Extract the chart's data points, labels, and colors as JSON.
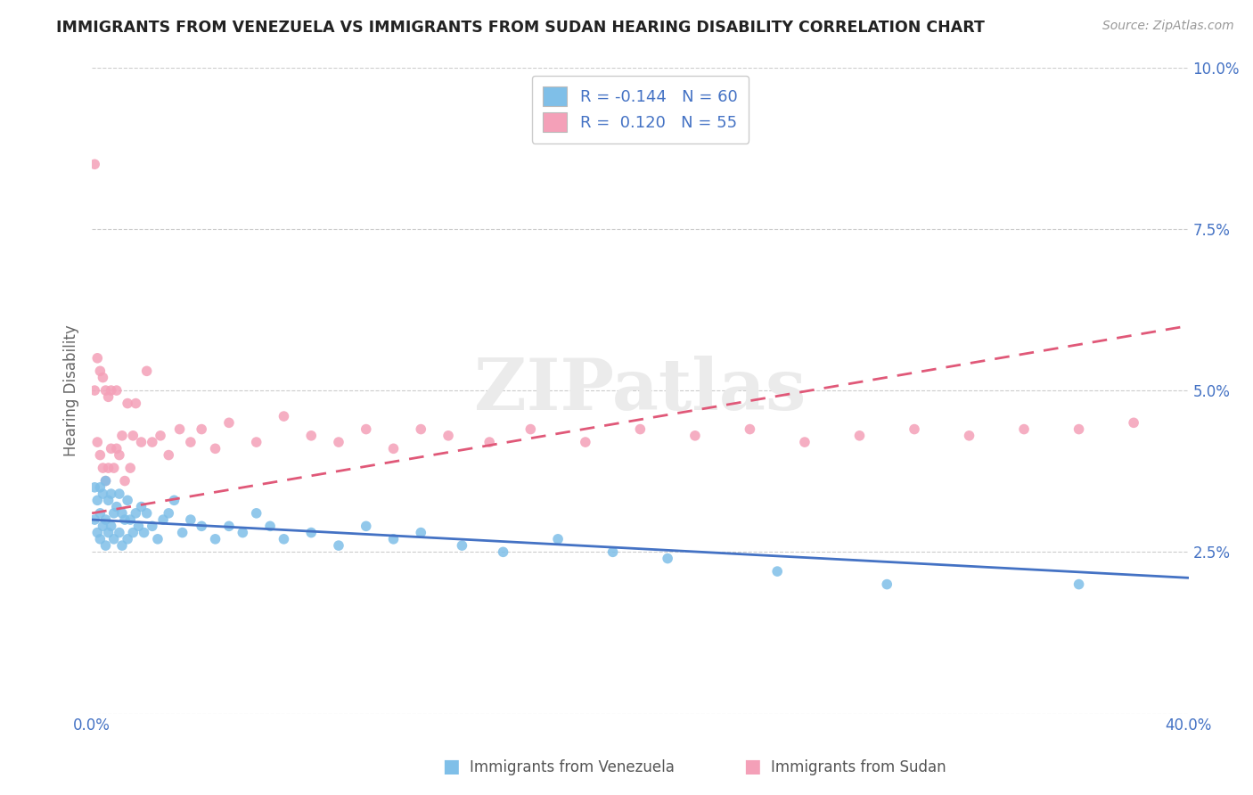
{
  "title": "IMMIGRANTS FROM VENEZUELA VS IMMIGRANTS FROM SUDAN HEARING DISABILITY CORRELATION CHART",
  "source": "Source: ZipAtlas.com",
  "xlabel": "",
  "ylabel": "Hearing Disability",
  "xlim": [
    0.0,
    0.4
  ],
  "ylim": [
    0.0,
    0.1
  ],
  "xticks": [
    0.0,
    0.1,
    0.2,
    0.3,
    0.4
  ],
  "xticklabels": [
    "0.0%",
    "",
    "",
    "",
    "40.0%"
  ],
  "yticks": [
    0.0,
    0.025,
    0.05,
    0.075,
    0.1
  ],
  "yticklabels": [
    "",
    "2.5%",
    "5.0%",
    "7.5%",
    "10.0%"
  ],
  "venezuela_color": "#7FBFE8",
  "sudan_color": "#F4A0B8",
  "venezuela_R": -0.144,
  "venezuela_N": 60,
  "sudan_R": 0.12,
  "sudan_N": 55,
  "title_color": "#222222",
  "tick_color": "#4472C4",
  "legend_R_color": "#4472C4",
  "background_color": "#ffffff",
  "grid_color": "#cccccc",
  "watermark": "ZIPatlas",
  "venezuela_trend_start_y": 0.03,
  "venezuela_trend_end_y": 0.021,
  "sudan_trend_start_y": 0.031,
  "sudan_trend_end_y": 0.06,
  "venezuela_scatter_x": [
    0.001,
    0.001,
    0.002,
    0.002,
    0.003,
    0.003,
    0.003,
    0.004,
    0.004,
    0.005,
    0.005,
    0.005,
    0.006,
    0.006,
    0.007,
    0.007,
    0.008,
    0.008,
    0.009,
    0.01,
    0.01,
    0.011,
    0.011,
    0.012,
    0.013,
    0.013,
    0.014,
    0.015,
    0.016,
    0.017,
    0.018,
    0.019,
    0.02,
    0.022,
    0.024,
    0.026,
    0.028,
    0.03,
    0.033,
    0.036,
    0.04,
    0.045,
    0.05,
    0.055,
    0.06,
    0.065,
    0.07,
    0.08,
    0.09,
    0.1,
    0.11,
    0.12,
    0.135,
    0.15,
    0.17,
    0.19,
    0.21,
    0.25,
    0.29,
    0.36
  ],
  "venezuela_scatter_y": [
    0.035,
    0.03,
    0.033,
    0.028,
    0.035,
    0.031,
    0.027,
    0.034,
    0.029,
    0.036,
    0.03,
    0.026,
    0.033,
    0.028,
    0.034,
    0.029,
    0.031,
    0.027,
    0.032,
    0.034,
    0.028,
    0.031,
    0.026,
    0.03,
    0.033,
    0.027,
    0.03,
    0.028,
    0.031,
    0.029,
    0.032,
    0.028,
    0.031,
    0.029,
    0.027,
    0.03,
    0.031,
    0.033,
    0.028,
    0.03,
    0.029,
    0.027,
    0.029,
    0.028,
    0.031,
    0.029,
    0.027,
    0.028,
    0.026,
    0.029,
    0.027,
    0.028,
    0.026,
    0.025,
    0.027,
    0.025,
    0.024,
    0.022,
    0.02,
    0.02
  ],
  "sudan_scatter_x": [
    0.001,
    0.001,
    0.002,
    0.002,
    0.003,
    0.003,
    0.004,
    0.004,
    0.005,
    0.005,
    0.006,
    0.006,
    0.007,
    0.007,
    0.008,
    0.009,
    0.009,
    0.01,
    0.011,
    0.012,
    0.013,
    0.014,
    0.015,
    0.016,
    0.018,
    0.02,
    0.022,
    0.025,
    0.028,
    0.032,
    0.036,
    0.04,
    0.045,
    0.05,
    0.06,
    0.07,
    0.08,
    0.09,
    0.1,
    0.11,
    0.12,
    0.13,
    0.145,
    0.16,
    0.18,
    0.2,
    0.22,
    0.24,
    0.26,
    0.28,
    0.3,
    0.32,
    0.34,
    0.36,
    0.38
  ],
  "sudan_scatter_y": [
    0.085,
    0.05,
    0.055,
    0.042,
    0.053,
    0.04,
    0.052,
    0.038,
    0.05,
    0.036,
    0.049,
    0.038,
    0.05,
    0.041,
    0.038,
    0.05,
    0.041,
    0.04,
    0.043,
    0.036,
    0.048,
    0.038,
    0.043,
    0.048,
    0.042,
    0.053,
    0.042,
    0.043,
    0.04,
    0.044,
    0.042,
    0.044,
    0.041,
    0.045,
    0.042,
    0.046,
    0.043,
    0.042,
    0.044,
    0.041,
    0.044,
    0.043,
    0.042,
    0.044,
    0.042,
    0.044,
    0.043,
    0.044,
    0.042,
    0.043,
    0.044,
    0.043,
    0.044,
    0.044,
    0.045
  ]
}
